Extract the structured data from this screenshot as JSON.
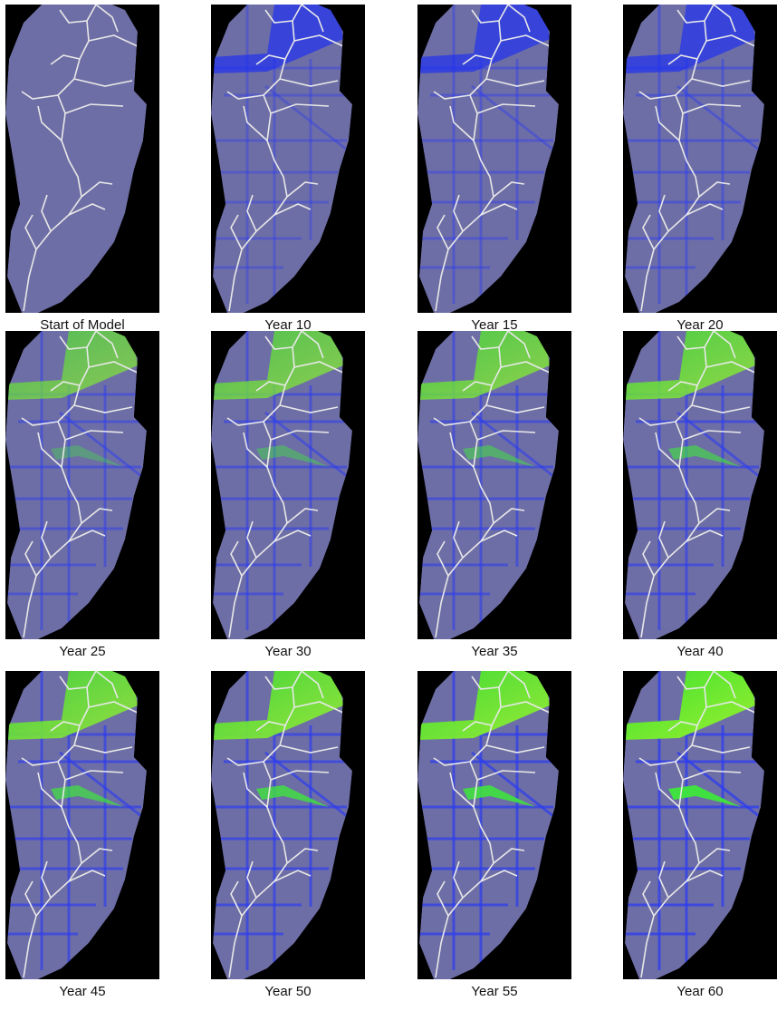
{
  "panels": [
    {
      "caption": "Start of Model"
    },
    {
      "caption": "Year 10"
    },
    {
      "caption": "Year 15"
    },
    {
      "caption": "Year 20"
    },
    {
      "caption": "Year 25"
    },
    {
      "caption": "Year 30"
    },
    {
      "caption": "Year 35"
    },
    {
      "caption": "Year 40"
    },
    {
      "caption": "Year 45"
    },
    {
      "caption": "Year 50"
    },
    {
      "caption": "Year 55"
    },
    {
      "caption": "Year 60"
    }
  ]
}
